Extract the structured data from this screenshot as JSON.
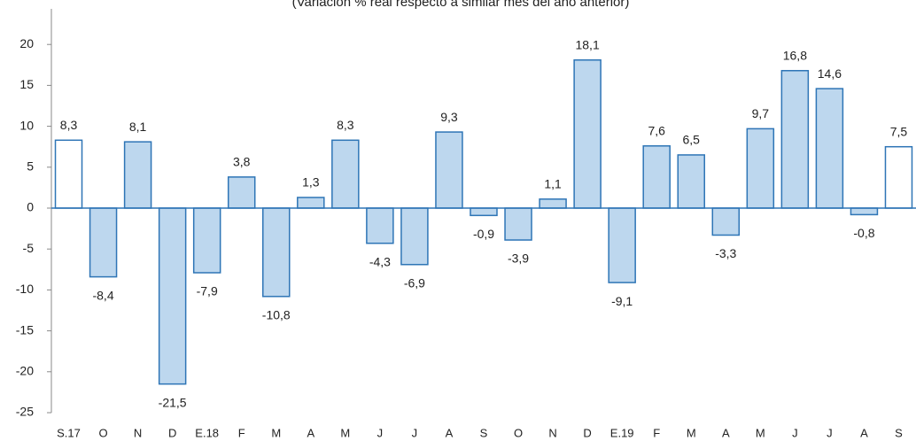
{
  "chart_data": {
    "type": "bar",
    "subtitle": "(Variación % real respecto a similar mes del año anterior)",
    "categories": [
      "S.17",
      "O",
      "N",
      "D",
      "E.18",
      "F",
      "M",
      "A",
      "M",
      "J",
      "J",
      "A",
      "S",
      "O",
      "N",
      "D",
      "E.19",
      "F",
      "M",
      "A",
      "M",
      "J",
      "J",
      "A",
      "S"
    ],
    "values": [
      8.3,
      -8.4,
      8.1,
      -21.5,
      -7.9,
      3.8,
      -10.8,
      1.3,
      8.3,
      -4.3,
      -6.9,
      9.3,
      -0.9,
      -3.9,
      1.1,
      18.1,
      -9.1,
      7.6,
      6.5,
      -3.3,
      9.7,
      16.8,
      14.6,
      -0.8,
      7.5
    ],
    "value_labels": [
      "8,3",
      "-8,4",
      "8,1",
      "-21,5",
      "-7,9",
      "3,8",
      "-10,8",
      "1,3",
      "8,3",
      "-4,3",
      "-6,9",
      "9,3",
      "-0,9",
      "-3,9",
      "1,1",
      "18,1",
      "-9,1",
      "7,6",
      "6,5",
      "-3,3",
      "9,7",
      "16,8",
      "14,6",
      "-0,8",
      "7,5"
    ],
    "colors": [
      "#ffffff",
      "#bdd7ee",
      "#bdd7ee",
      "#bdd7ee",
      "#bdd7ee",
      "#bdd7ee",
      "#bdd7ee",
      "#bdd7ee",
      "#bdd7ee",
      "#bdd7ee",
      "#bdd7ee",
      "#bdd7ee",
      "#bdd7ee",
      "#bdd7ee",
      "#bdd7ee",
      "#bdd7ee",
      "#bdd7ee",
      "#bdd7ee",
      "#bdd7ee",
      "#bdd7ee",
      "#bdd7ee",
      "#bdd7ee",
      "#bdd7ee",
      "#bdd7ee",
      "#ffffff"
    ],
    "edge_color": "#2e75b6",
    "ylim": [
      -25,
      25
    ],
    "yticks": [
      -25,
      -20,
      -15,
      -10,
      -5,
      0,
      5,
      10,
      15,
      20
    ]
  }
}
